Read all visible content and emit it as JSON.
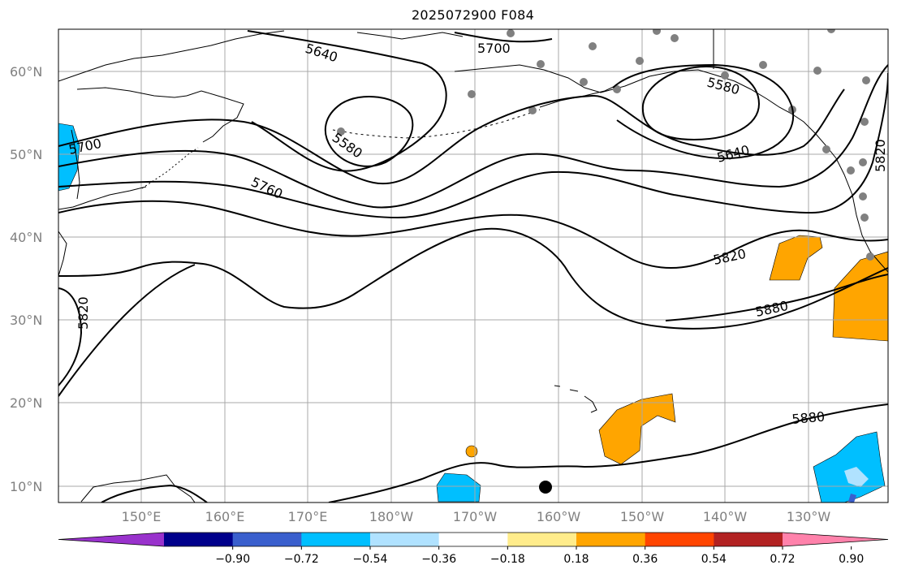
{
  "title": "2025072900 F084",
  "lat_labels": [
    "60°N",
    "50°N",
    "40°N",
    "30°N",
    "20°N",
    "10°N"
  ],
  "lon_labels": [
    "150°E",
    "160°E",
    "170°E",
    "180°W",
    "170°W",
    "160°W",
    "150°W",
    "140°W",
    "130°W"
  ],
  "contour_labels": [
    "5640",
    "5700",
    "5580",
    "5700",
    "5760",
    "5580",
    "5640",
    "5820",
    "5820",
    "5880",
    "5880",
    "5820"
  ],
  "colorbar": {
    "ticks": [
      "−0.90",
      "−0.72",
      "−0.54",
      "−0.36",
      "−0.18",
      "0.18",
      "0.36",
      "0.54",
      "0.72",
      "0.90"
    ],
    "colors": [
      "#9932cc",
      "#00008b",
      "#3a5fcd",
      "#00bfff",
      "#b0e2ff",
      "#ffffff",
      "#ffec8b",
      "#ffa500",
      "#ff4500",
      "#b22222",
      "#ff82ab"
    ]
  }
}
